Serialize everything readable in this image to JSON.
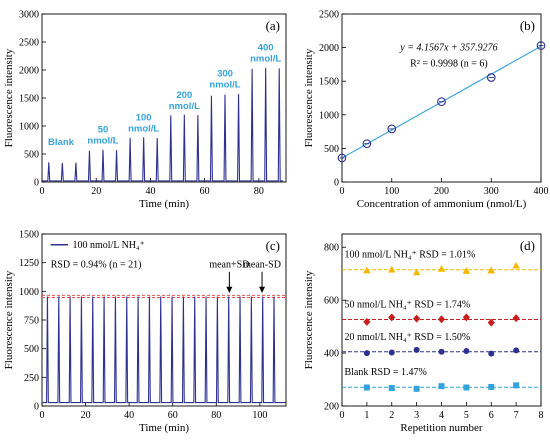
{
  "chart_data": [
    {
      "id": "a",
      "type": "line",
      "panel_label": "(a)",
      "xlabel": "Time (min)",
      "ylabel": "Fluorescence intensity",
      "xlim": [
        0,
        90
      ],
      "ylim": [
        0,
        3000
      ],
      "xticks": [
        "0",
        "20",
        "40",
        "60",
        "80"
      ],
      "yticks": [
        "0",
        "500",
        "1000",
        "1500",
        "2000",
        "2500",
        "3000"
      ],
      "series": [
        {
          "color": "#2e3192",
          "peaks": [
            {
              "x": 2.5,
              "y": 350
            },
            {
              "x": 7.5,
              "y": 340
            },
            {
              "x": 12.5,
              "y": 345
            },
            {
              "x": 17.5,
              "y": 560
            },
            {
              "x": 22.5,
              "y": 575
            },
            {
              "x": 27.5,
              "y": 570
            },
            {
              "x": 32.5,
              "y": 790
            },
            {
              "x": 37.5,
              "y": 800
            },
            {
              "x": 42.5,
              "y": 785
            },
            {
              "x": 47.5,
              "y": 1190
            },
            {
              "x": 52.5,
              "y": 1200
            },
            {
              "x": 57.5,
              "y": 1195
            },
            {
              "x": 62.5,
              "y": 1540
            },
            {
              "x": 67.5,
              "y": 1560
            },
            {
              "x": 72.5,
              "y": 1570
            },
            {
              "x": 77.5,
              "y": 2020
            },
            {
              "x": 82.5,
              "y": 2040
            },
            {
              "x": 87.5,
              "y": 2030
            }
          ],
          "baseline": 0,
          "x_end": 89
        }
      ],
      "annotations": [
        {
          "lines": [
            "Blank"
          ],
          "x": 7,
          "y": 660
        },
        {
          "lines": [
            "50",
            "nmol/L"
          ],
          "x": 22.5,
          "y": 880
        },
        {
          "lines": [
            "100",
            "nmol/L"
          ],
          "x": 37.5,
          "y": 1100
        },
        {
          "lines": [
            "200",
            "nmol/L"
          ],
          "x": 52.5,
          "y": 1500
        },
        {
          "lines": [
            "300",
            "nmol/L"
          ],
          "x": 67.5,
          "y": 1880
        },
        {
          "lines": [
            "400",
            "nmol/L"
          ],
          "x": 82.5,
          "y": 2350
        }
      ]
    },
    {
      "id": "b",
      "type": "scatter",
      "panel_label": "(b)",
      "xlabel": "Concentration of ammonium (nmol/L)",
      "ylabel": "Fluorescence intensity",
      "xlim": [
        0,
        400
      ],
      "ylim": [
        0,
        2500
      ],
      "xticks": [
        "0",
        "100",
        "200",
        "300",
        "400"
      ],
      "yticks": [
        "0",
        "500",
        "1000",
        "1500",
        "2000",
        "2500"
      ],
      "x": [
        0,
        50,
        100,
        200,
        300,
        400
      ],
      "y": [
        358,
        570,
        790,
        1195,
        1555,
        2030
      ],
      "fit": {
        "slope": 4.1567,
        "intercept": 357.9276
      },
      "equation": "y = 4.1567x + 357.9276",
      "r2": "R² = 0.9998 (n = 6)",
      "marker_color": "#2e3192",
      "line_color": "#33a3dc"
    },
    {
      "id": "c",
      "type": "line",
      "panel_label": "(c)",
      "xlabel": "Time (min)",
      "ylabel": "Fluorescence intensity",
      "xlim": [
        0,
        112
      ],
      "ylim": [
        0,
        1500
      ],
      "xticks": [
        "0",
        "20",
        "40",
        "60",
        "80",
        "100"
      ],
      "yticks": [
        "0",
        "250",
        "500",
        "750",
        "1000",
        "1250",
        "1500"
      ],
      "series": [
        {
          "name": "100 nmol/L NH4+",
          "color": "#2e3192",
          "peak_count": 21,
          "peak_start": 2.5,
          "peak_step": 5.2,
          "peak_value": 955,
          "baseline": 30
        }
      ],
      "legend": "100 nmol/L NH₄⁺",
      "rsd_text": "RSD = 0.94% (n = 21)",
      "mean_plus_sd": 965,
      "mean_minus_sd": 946,
      "sd_line_color": "#e8534a",
      "arrow_labels": [
        {
          "text": "mean+SD",
          "x": 86
        },
        {
          "text": "mean-SD",
          "x": 101
        }
      ]
    },
    {
      "id": "d",
      "type": "scatter",
      "panel_label": "(d)",
      "xlabel": "Repetition number",
      "ylabel": "Fluorescence intensity",
      "xlim": [
        0,
        8
      ],
      "ylim": [
        200,
        850
      ],
      "xticks": [
        "0",
        "1",
        "2",
        "3",
        "4",
        "5",
        "6",
        "7",
        "8"
      ],
      "yticks": [
        "200",
        "400",
        "600",
        "800"
      ],
      "x": [
        1,
        2,
        3,
        4,
        5,
        6,
        7
      ],
      "series": [
        {
          "label": "100 nmol/L NH₄⁺ RSD = 1.01%",
          "values": [
            712,
            715,
            705,
            718,
            710,
            712,
            730
          ],
          "color": "#f5b800",
          "marker": "triangle",
          "mean": 715
        },
        {
          "label": "50 nmol/L NH₄⁺ RSD = 1.74%",
          "values": [
            518,
            535,
            530,
            528,
            535,
            515,
            532
          ],
          "color": "#c81e1e",
          "marker": "diamond",
          "mean": 527
        },
        {
          "label": "20 nmol/L NH₄⁺ RSD = 1.50%",
          "values": [
            400,
            402,
            412,
            405,
            408,
            398,
            410
          ],
          "color": "#2e3192",
          "marker": "circle",
          "mean": 405
        },
        {
          "label": "Blank RSD = 1.47%",
          "values": [
            270,
            268,
            265,
            275,
            270,
            272,
            278
          ],
          "color": "#33a3dc",
          "marker": "square",
          "mean": 271
        }
      ]
    }
  ]
}
